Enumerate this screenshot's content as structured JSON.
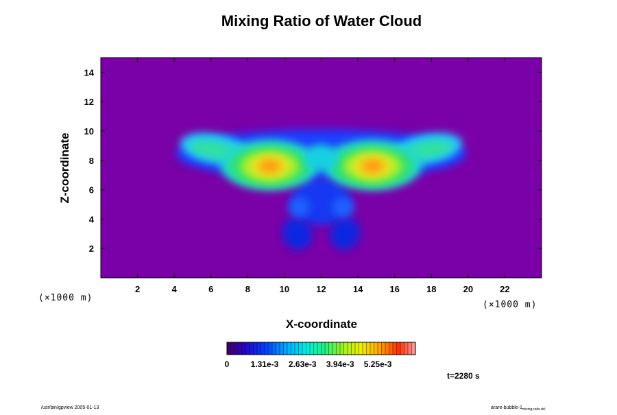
{
  "chart_data": {
    "type": "heatmap",
    "title": "Mixing Ratio of Water Cloud",
    "xlabel": "X-coordinate",
    "ylabel": "Z-coordinate",
    "x_unit": "(×1000 m)",
    "y_unit": "(×1000 m)",
    "xlim": [
      0,
      24
    ],
    "ylim": [
      0,
      15
    ],
    "x_ticks": [
      2,
      4,
      6,
      8,
      10,
      12,
      14,
      16,
      18,
      20,
      22
    ],
    "y_ticks": [
      2,
      4,
      6,
      8,
      10,
      12,
      14
    ],
    "background_color": "#7a00a8",
    "features": [
      {
        "name": "left core",
        "x": 9.2,
        "z": 7.6,
        "peak": 0.0058
      },
      {
        "name": "right core",
        "x": 14.8,
        "z": 7.6,
        "peak": 0.0058
      },
      {
        "name": "left outer lobe",
        "x": 6.0,
        "z": 8.7,
        "level": 0.0026
      },
      {
        "name": "right outer lobe",
        "x": 18.0,
        "z": 8.7,
        "level": 0.0026
      },
      {
        "name": "lower left tail",
        "x": 10.6,
        "z": 2.8,
        "level": 0.001
      },
      {
        "name": "lower right tail",
        "x": 13.4,
        "z": 2.8,
        "level": 0.001
      }
    ],
    "colorbar": {
      "min": 0,
      "max": 0.00656,
      "tick_labels": [
        "0",
        "1.31e-3",
        "2.63e-3",
        "3.94e-3",
        "5.25e-3"
      ],
      "tick_values": [
        0,
        0.00131,
        0.00263,
        0.00394,
        0.00525
      ]
    }
  },
  "time_label": "t=2280 s",
  "footer_left": "/usr/bin/gpview 2005-01-13",
  "footer_right": "arare-bubble-1",
  "footer_right_sub": "mixing-ratio.dcl"
}
